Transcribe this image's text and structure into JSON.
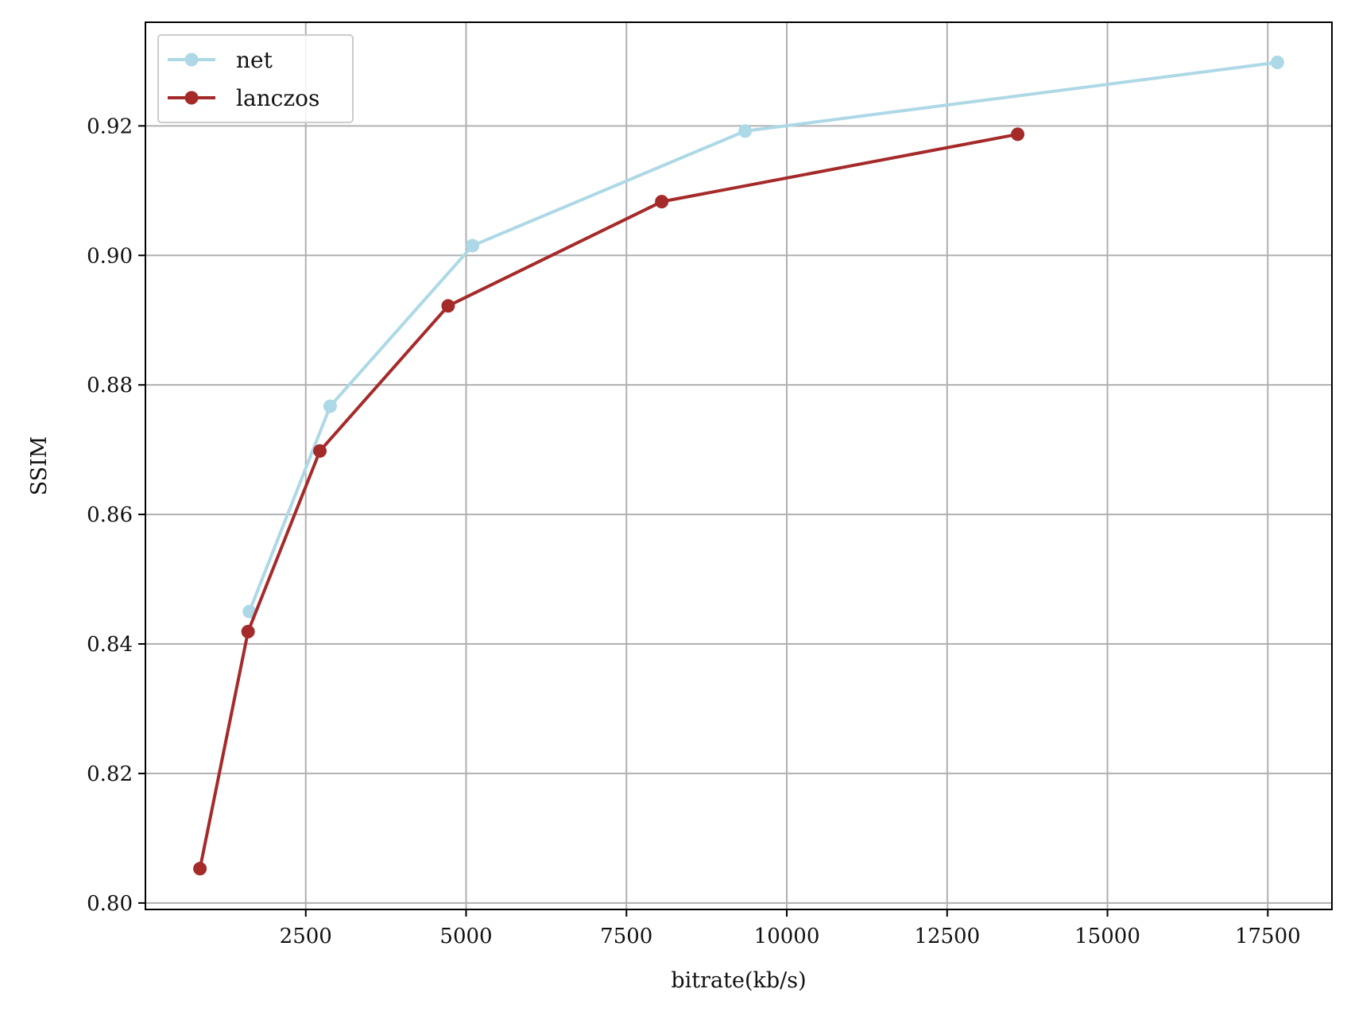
{
  "chart_data": {
    "type": "line",
    "title": "",
    "xlabel": "bitrate(kb/s)",
    "ylabel": "SSIM",
    "xlim": [
      0,
      18500
    ],
    "ylim": [
      0.799,
      0.936
    ],
    "xticks": [
      2500,
      5000,
      7500,
      10000,
      12500,
      15000,
      17500
    ],
    "xtick_labels": [
      "2500",
      "5000",
      "7500",
      "10000",
      "12500",
      "15000",
      "17500"
    ],
    "yticks": [
      0.8,
      0.82,
      0.84,
      0.86,
      0.88,
      0.9,
      0.92
    ],
    "ytick_labels": [
      "0.80",
      "0.82",
      "0.84",
      "0.86",
      "0.88",
      "0.90",
      "0.92"
    ],
    "grid": true,
    "legend_position": "top-left",
    "series": [
      {
        "name": "net",
        "color": "#add8e6",
        "marker": "circle",
        "x": [
          1620,
          2880,
          5100,
          9350,
          17650
        ],
        "y": [
          0.845,
          0.8767,
          0.9015,
          0.9192,
          0.9298
        ]
      },
      {
        "name": "lanczos",
        "color": "#a52a2a",
        "marker": "circle",
        "x": [
          850,
          1600,
          2720,
          4720,
          8050,
          13600
        ],
        "y": [
          0.8053,
          0.8419,
          0.8698,
          0.8922,
          0.9083,
          0.9187
        ]
      }
    ]
  }
}
